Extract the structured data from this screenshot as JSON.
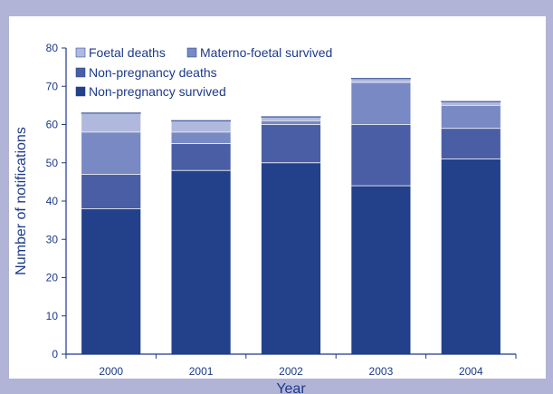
{
  "chart_data": {
    "type": "bar",
    "stacked": true,
    "categories": [
      "2000",
      "2001",
      "2002",
      "2003",
      "2004"
    ],
    "series": [
      {
        "name": "Non-pregnancy survived",
        "values": [
          38,
          48,
          50,
          44,
          51
        ],
        "color": "#22418a"
      },
      {
        "name": "Non-pregnancy deaths",
        "values": [
          9,
          7,
          10,
          16,
          8
        ],
        "color": "#4a5ea6"
      },
      {
        "name": "Materno-foetal survived",
        "values": [
          11,
          3,
          1,
          11,
          6
        ],
        "color": "#7889c4"
      },
      {
        "name": "Foetal deaths",
        "values": [
          5,
          3,
          1,
          1,
          1
        ],
        "color": "#b0b9dd"
      }
    ],
    "legend_order": [
      "Foetal deaths",
      "Materno-foetal survived",
      "Non-pregnancy deaths",
      "Non-pregnancy survived"
    ],
    "title": "",
    "xlabel": "Year",
    "ylabel": "Number of notifications",
    "ylim": [
      0,
      80
    ],
    "yticks": [
      0,
      10,
      20,
      30,
      40,
      50,
      60,
      70,
      80
    ],
    "grid": false,
    "legend_position": "top-left",
    "background_color": "#ffffff",
    "frame_color": "#b1b4d6",
    "axis_color": "#1c3a8a",
    "text_color": "#1c3a8a"
  }
}
